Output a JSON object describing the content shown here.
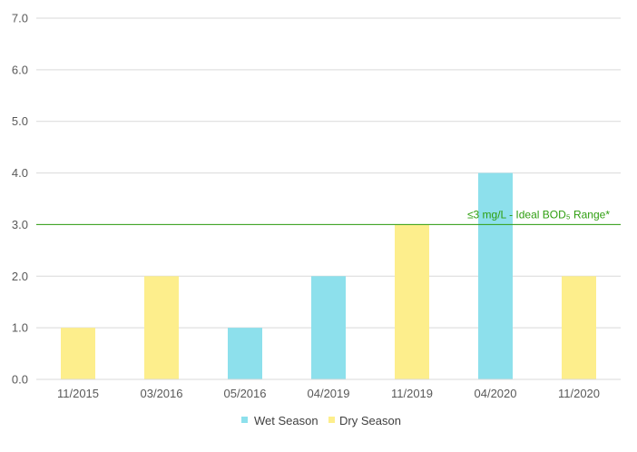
{
  "chart_data": {
    "type": "bar",
    "categories": [
      "11/2015",
      "03/2016",
      "05/2016",
      "04/2019",
      "11/2019",
      "04/2020",
      "11/2020"
    ],
    "values": [
      1.0,
      2.0,
      1.0,
      2.0,
      3.0,
      4.0,
      2.0
    ],
    "bar_series": [
      "Dry Season",
      "Dry Season",
      "Wet Season",
      "Wet Season",
      "Dry Season",
      "Wet Season",
      "Dry Season"
    ],
    "series": [
      {
        "name": "Wet Season",
        "color": "#8de0ec"
      },
      {
        "name": "Dry Season",
        "color": "#fdee8c"
      }
    ],
    "ylim": [
      0,
      7
    ],
    "yticks": [
      "0.0",
      "1.0",
      "2.0",
      "3.0",
      "4.0",
      "5.0",
      "6.0",
      "7.0"
    ],
    "grid": true,
    "legend_position": "bottom",
    "reference_line": {
      "value": 3.0,
      "label": "≤3 mg/L - Ideal BOD₅ Range*",
      "color": "#2e9e0f"
    }
  }
}
